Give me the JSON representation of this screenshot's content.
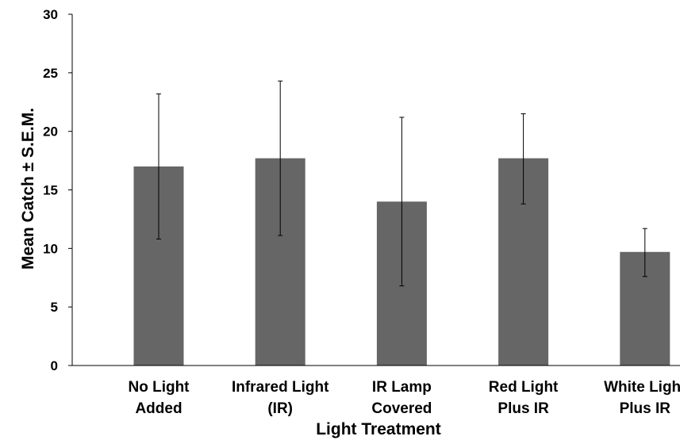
{
  "chart_data": {
    "type": "bar",
    "title": "",
    "xlabel": "Light Treatment",
    "ylabel": "Mean Catch ± S.E.M.",
    "categories": [
      [
        "No Light",
        "Added"
      ],
      [
        "Infrared Light",
        "(IR)"
      ],
      [
        "IR Lamp",
        "Covered"
      ],
      [
        "Red Light",
        "Plus IR"
      ],
      [
        "White Light",
        "Plus IR"
      ]
    ],
    "values": [
      17.0,
      17.7,
      14.0,
      17.7,
      9.7
    ],
    "error_low": [
      10.8,
      11.1,
      6.8,
      13.8,
      7.6
    ],
    "error_high": [
      23.2,
      24.3,
      21.2,
      21.5,
      11.7
    ],
    "ylim": [
      0,
      30
    ],
    "yticks": [
      0,
      5,
      10,
      15,
      20,
      25,
      30
    ],
    "grid": false,
    "legend": "none",
    "bar_color": "#666666",
    "error_bar_color": "#000000",
    "axis_color": "#000000"
  }
}
